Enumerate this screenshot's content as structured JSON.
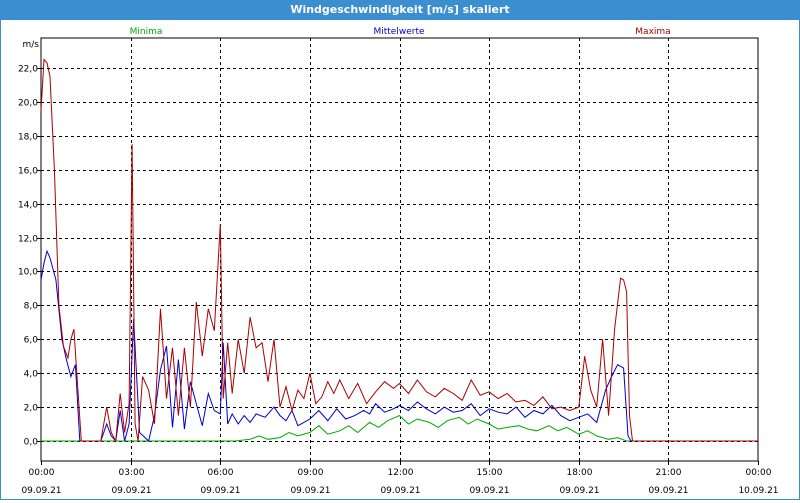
{
  "window": {
    "title": "Windgeschwindigkeit [m/s] skaliert"
  },
  "chart_data": {
    "type": "line",
    "ylabel": "m/s",
    "ylim": [
      0,
      23
    ],
    "yticks": [
      0,
      2,
      4,
      6,
      8,
      10,
      12,
      14,
      16,
      18,
      20,
      22
    ],
    "ytick_labels": [
      "0,0",
      "2,0",
      "4,0",
      "6,0",
      "8,0",
      "10,0",
      "12,0",
      "14,0",
      "16,0",
      "18,0",
      "20,0",
      "22,0"
    ],
    "xlim_hours": [
      0,
      24
    ],
    "x_ticks": [
      {
        "h": 0,
        "time": "00:00",
        "date": "09.09.21"
      },
      {
        "h": 3,
        "time": "03:00",
        "date": "09.09.21"
      },
      {
        "h": 6,
        "time": "06:00",
        "date": "09.09.21"
      },
      {
        "h": 9,
        "time": "09:00",
        "date": "09.09.21"
      },
      {
        "h": 12,
        "time": "12:00",
        "date": "09.09.21"
      },
      {
        "h": 15,
        "time": "15:00",
        "date": "09.09.21"
      },
      {
        "h": 18,
        "time": "18:00",
        "date": "09.09.21"
      },
      {
        "h": 21,
        "time": "21:00",
        "date": "09.09.21"
      },
      {
        "h": 24,
        "time": "00:00",
        "date": "10.09.21"
      }
    ],
    "grid": true,
    "legend": "top",
    "series": [
      {
        "name": "Minima",
        "color": "#00aa00",
        "x": [
          0,
          1.2,
          2,
          6.5,
          7.0,
          7.3,
          7.6,
          8.0,
          8.3,
          8.6,
          9.0,
          9.3,
          9.6,
          10.0,
          10.3,
          10.6,
          11.0,
          11.3,
          11.6,
          12.0,
          12.3,
          12.6,
          13.0,
          13.3,
          13.6,
          14.0,
          14.3,
          14.6,
          15.0,
          15.3,
          15.6,
          16.0,
          16.3,
          16.6,
          17.0,
          17.3,
          17.6,
          18.0,
          18.3,
          18.6,
          19.0,
          19.3,
          19.6,
          24
        ],
        "y": [
          0,
          0,
          0,
          0,
          0.1,
          0.3,
          0.1,
          0.2,
          0.5,
          0.3,
          0.5,
          0.9,
          0.4,
          0.6,
          0.9,
          0.5,
          1.1,
          0.8,
          1.2,
          1.5,
          1.0,
          1.3,
          1.1,
          0.8,
          1.2,
          1.4,
          1.0,
          1.3,
          1.0,
          0.7,
          0.8,
          0.9,
          0.7,
          0.6,
          0.9,
          0.6,
          0.8,
          0.4,
          0.6,
          0.3,
          0.1,
          0.2,
          0,
          0
        ]
      },
      {
        "name": "Mittelwerte",
        "color": "#0000cc",
        "x": [
          0,
          0.1,
          0.2,
          0.3,
          0.5,
          0.7,
          0.85,
          1.0,
          1.15,
          1.3,
          1.5,
          2.0,
          2.2,
          2.35,
          2.5,
          2.65,
          2.8,
          2.95,
          3.1,
          3.3,
          3.6,
          3.8,
          4.0,
          4.2,
          4.4,
          4.6,
          4.8,
          5.0,
          5.2,
          5.4,
          5.6,
          5.8,
          6.0,
          6.1,
          6.25,
          6.4,
          6.6,
          6.8,
          7.0,
          7.2,
          7.5,
          7.8,
          8.0,
          8.2,
          8.4,
          8.6,
          8.8,
          9.0,
          9.3,
          9.6,
          9.9,
          10.2,
          10.5,
          10.8,
          11.0,
          11.2,
          11.5,
          11.8,
          12.0,
          12.3,
          12.6,
          12.9,
          13.2,
          13.5,
          13.8,
          14.1,
          14.4,
          14.7,
          15.0,
          15.3,
          15.6,
          15.9,
          16.2,
          16.5,
          16.8,
          17.1,
          17.4,
          17.7,
          18.0,
          18.3,
          18.6,
          18.9,
          19.1,
          19.3,
          19.5,
          19.65,
          19.75,
          24
        ],
        "y": [
          9.5,
          10.5,
          11.2,
          10.8,
          9.5,
          6.0,
          4.8,
          3.8,
          4.5,
          0,
          0,
          0,
          1.0,
          0.3,
          0,
          1.8,
          0,
          1.0,
          7.2,
          0.5,
          0,
          1.5,
          4.2,
          5.6,
          0.8,
          4.8,
          0.7,
          3.5,
          2.2,
          0.9,
          2.8,
          1.8,
          1.6,
          5.8,
          1.0,
          1.6,
          1.0,
          1.5,
          1.1,
          1.6,
          1.4,
          2.0,
          1.5,
          1.2,
          1.8,
          0.9,
          1.1,
          1.3,
          1.8,
          1.2,
          1.9,
          1.3,
          1.5,
          1.8,
          1.6,
          2.2,
          1.7,
          1.9,
          2.1,
          1.8,
          2.3,
          1.9,
          1.6,
          2.0,
          1.7,
          1.8,
          2.2,
          1.5,
          1.9,
          1.7,
          1.6,
          2.0,
          1.4,
          1.8,
          1.6,
          2.1,
          1.5,
          1.2,
          1.4,
          1.6,
          1.1,
          3.0,
          3.8,
          4.5,
          4.3,
          0.3,
          0,
          0
        ]
      },
      {
        "name": "Maxima",
        "color": "#aa0000",
        "x": [
          0,
          0.1,
          0.2,
          0.3,
          0.45,
          0.6,
          0.75,
          0.9,
          1.0,
          1.1,
          1.2,
          1.35,
          1.5,
          2.0,
          2.2,
          2.35,
          2.5,
          2.65,
          2.8,
          2.95,
          3.05,
          3.15,
          3.25,
          3.4,
          3.6,
          3.8,
          4.0,
          4.2,
          4.4,
          4.6,
          4.8,
          5.0,
          5.2,
          5.4,
          5.6,
          5.8,
          6.0,
          6.1,
          6.25,
          6.4,
          6.6,
          6.8,
          7.0,
          7.2,
          7.4,
          7.6,
          7.8,
          8.0,
          8.2,
          8.4,
          8.6,
          8.8,
          9.0,
          9.2,
          9.4,
          9.6,
          9.8,
          10.0,
          10.3,
          10.6,
          10.9,
          11.2,
          11.5,
          11.8,
          12.0,
          12.3,
          12.6,
          12.9,
          13.2,
          13.5,
          13.8,
          14.1,
          14.4,
          14.7,
          15.0,
          15.3,
          15.6,
          15.9,
          16.2,
          16.5,
          16.8,
          17.1,
          17.4,
          17.7,
          18.0,
          18.2,
          18.4,
          18.6,
          18.8,
          19.0,
          19.2,
          19.4,
          19.5,
          19.6,
          19.7,
          19.8,
          24
        ],
        "y": [
          19.5,
          22.5,
          22.3,
          21.5,
          16.0,
          8.0,
          5.6,
          4.9,
          6.0,
          6.6,
          4.0,
          0,
          0,
          0,
          2.0,
          0.5,
          0,
          2.8,
          0.5,
          2.2,
          17.5,
          1.0,
          0,
          3.8,
          3.0,
          1.0,
          7.8,
          2.5,
          5.5,
          1.5,
          5.5,
          2.0,
          8.2,
          5.0,
          7.8,
          6.5,
          12.8,
          2.5,
          5.8,
          2.8,
          6.0,
          4.0,
          7.3,
          5.5,
          5.8,
          3.5,
          6.0,
          2.0,
          3.2,
          1.8,
          3.0,
          2.5,
          4.0,
          2.2,
          2.6,
          3.5,
          2.8,
          3.6,
          2.5,
          3.4,
          2.2,
          2.9,
          3.5,
          3.1,
          3.4,
          2.8,
          3.6,
          2.9,
          2.6,
          3.1,
          2.8,
          2.4,
          3.6,
          2.7,
          2.9,
          2.5,
          2.8,
          2.3,
          2.4,
          2.1,
          2.6,
          1.9,
          2.0,
          1.8,
          2.0,
          5.0,
          3.0,
          2.0,
          6.0,
          1.5,
          6.6,
          9.6,
          9.5,
          8.8,
          1.5,
          0,
          0
        ]
      }
    ]
  }
}
